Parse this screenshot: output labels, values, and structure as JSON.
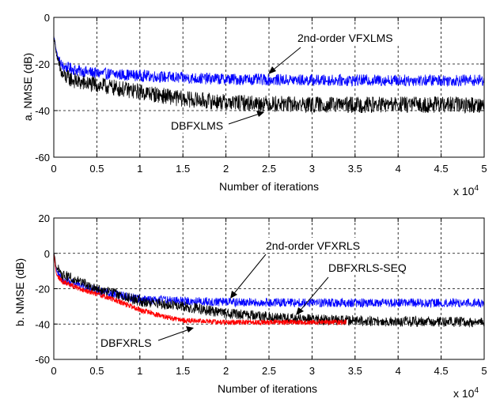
{
  "chart_data": [
    {
      "type": "line",
      "xlabel": "Number of iterations",
      "ylabel": "a. NMSE (dB)",
      "x_multiplier": "x 10",
      "x_multiplier_exp": "4",
      "xlim": [
        0,
        5
      ],
      "ylim": [
        -60,
        0
      ],
      "xticks": [
        "0",
        "0.5",
        "1",
        "1.5",
        "2",
        "2.5",
        "3",
        "3.5",
        "4",
        "4.5",
        "5"
      ],
      "yticks": [
        "0",
        "-20",
        "-40",
        "-60"
      ],
      "grid": true,
      "series": [
        {
          "name": "2nd-order VFXLMS",
          "color": "#0000ff",
          "x": [
            0,
            0.05,
            0.1,
            0.3,
            0.5,
            1.0,
            1.5,
            2.0,
            3.0,
            4.0,
            5.0
          ],
          "y": [
            -8,
            -18,
            -21,
            -23,
            -24,
            -25,
            -26,
            -26.5,
            -27,
            -27,
            -27
          ],
          "noise": 2.5
        },
        {
          "name": "DBFXLMS",
          "color": "#000000",
          "x": [
            0,
            0.05,
            0.1,
            0.3,
            0.5,
            1.0,
            1.5,
            2.0,
            2.5,
            3.0,
            4.0,
            5.0
          ],
          "y": [
            -8,
            -20,
            -25,
            -28,
            -29,
            -32,
            -35,
            -36.5,
            -37,
            -37.5,
            -37.5,
            -37.5
          ],
          "noise": 3.5
        }
      ],
      "annotations": [
        {
          "text": "2nd-order VFXLMS",
          "points_to": [
            2.5,
            -27
          ]
        },
        {
          "text": "DBFXLMS",
          "points_to": [
            2.45,
            -37
          ]
        }
      ]
    },
    {
      "type": "line",
      "xlabel": "Number of iterations",
      "ylabel": "b. NMSE (dB)",
      "x_multiplier": "x 10",
      "x_multiplier_exp": "4",
      "xlim": [
        0,
        5
      ],
      "ylim": [
        -60,
        20
      ],
      "xticks": [
        "0",
        "0.5",
        "1",
        "1.5",
        "2",
        "2.5",
        "3",
        "3.5",
        "4",
        "4.5",
        "5"
      ],
      "yticks": [
        "20",
        "0",
        "-20",
        "-40",
        "-60"
      ],
      "grid": true,
      "series": [
        {
          "name": "2nd-order VFXRLS",
          "color": "#0000ff",
          "x": [
            0,
            0.03,
            0.1,
            0.3,
            0.5,
            0.8,
            1.0,
            1.5,
            2.0,
            3.0,
            4.0,
            5.0
          ],
          "y": [
            0,
            -10,
            -15,
            -18,
            -21,
            -24,
            -26,
            -27,
            -27.5,
            -28,
            -28,
            -28
          ],
          "noise": 2.5
        },
        {
          "name": "DBFXRLS-SEQ",
          "color": "#000000",
          "x": [
            0,
            0.03,
            0.1,
            0.3,
            0.5,
            0.8,
            1.0,
            1.5,
            2.0,
            2.5,
            3.0,
            4.0,
            5.0
          ],
          "y": [
            0,
            -8,
            -12,
            -16,
            -20,
            -24,
            -27,
            -30,
            -34,
            -36,
            -37.5,
            -38.5,
            -39
          ],
          "noise": 3
        },
        {
          "name": "DBFXRLS",
          "color": "#ff0000",
          "x": [
            0,
            0.03,
            0.1,
            0.3,
            0.5,
            0.8,
            1.0,
            1.3,
            1.5,
            2.0,
            3.0,
            4.0,
            5.0
          ],
          "y": [
            0,
            -12,
            -16,
            -20,
            -23,
            -28,
            -32,
            -36,
            -38,
            -39,
            -39,
            -39,
            -39
          ],
          "noise": 1.5,
          "xmax": 3.4
        }
      ],
      "annotations": [
        {
          "text": "2nd-order VFXRLS",
          "points_to": [
            2.05,
            -26
          ]
        },
        {
          "text": "DBFXRLS-SEQ",
          "points_to": [
            2.8,
            -36
          ]
        },
        {
          "text": "DBFXRLS",
          "points_to": [
            1.6,
            -40
          ]
        }
      ]
    }
  ]
}
